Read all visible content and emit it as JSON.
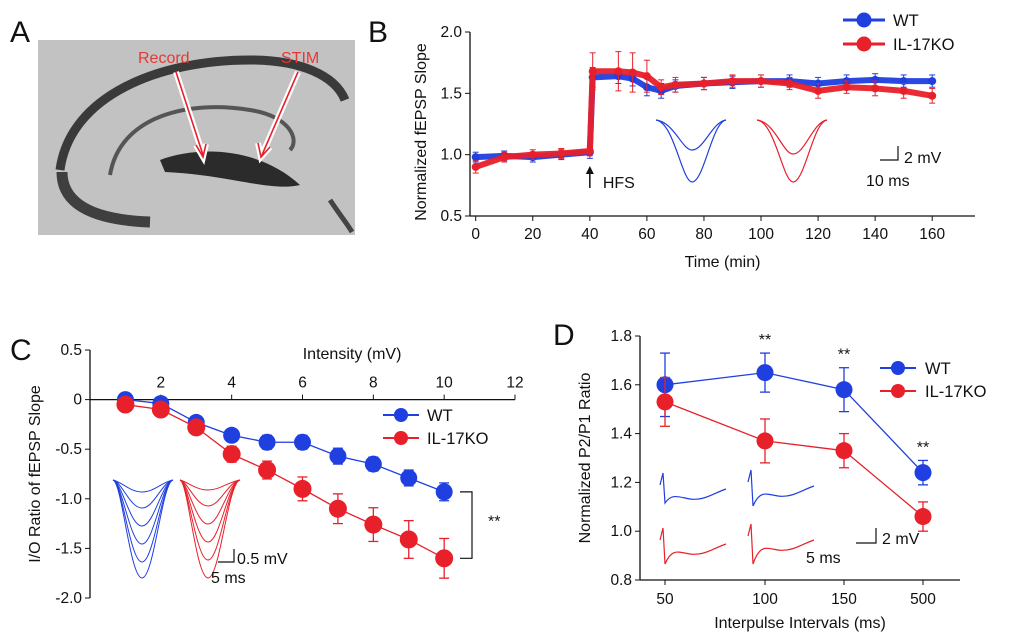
{
  "colors": {
    "wt": "#1f3fe0",
    "ko": "#e8202a",
    "axis": "#111111"
  },
  "panel_a": {
    "letter": "A",
    "label_record": "Record",
    "label_stim": "STIM",
    "image": "hippocampal-slice-micrograph"
  },
  "panel_b": {
    "letter": "B"
  },
  "panel_c": {
    "letter": "C"
  },
  "panel_d": {
    "letter": "D"
  },
  "chart_data": [
    {
      "id": "B",
      "type": "line",
      "xlabel": "Time (min)",
      "ylabel": "Normalized fEPSP Slope",
      "xlim": [
        -2,
        175
      ],
      "ylim": [
        0.5,
        2.0
      ],
      "xticks": [
        "0",
        "20",
        "40",
        "60",
        "80",
        "100",
        "120",
        "140",
        "160"
      ],
      "yticks": [
        "0.5",
        "1.0",
        "1.5",
        "2.0"
      ],
      "legend": [
        "WT",
        "IL-17KO"
      ],
      "legend_position": "top-right",
      "annotations": {
        "hfs": "HFS",
        "scale_v": "2 mV",
        "scale_t": "10 ms"
      },
      "series": [
        {
          "name": "WT",
          "x": [
            0,
            10,
            20,
            30,
            40,
            41,
            50,
            55,
            60,
            65,
            70,
            80,
            90,
            100,
            110,
            120,
            130,
            140,
            150,
            160
          ],
          "values": [
            0.98,
            0.99,
            0.98,
            1.0,
            1.02,
            1.63,
            1.64,
            1.62,
            1.55,
            1.52,
            1.56,
            1.58,
            1.59,
            1.6,
            1.6,
            1.58,
            1.6,
            1.61,
            1.6,
            1.6
          ],
          "error": [
            0.04,
            0.04,
            0.04,
            0.04,
            0.05,
            0.08,
            0.06,
            0.06,
            0.07,
            0.06,
            0.05,
            0.05,
            0.05,
            0.05,
            0.05,
            0.05,
            0.05,
            0.05,
            0.05,
            0.05
          ]
        },
        {
          "name": "IL-17KO",
          "x": [
            0,
            10,
            20,
            30,
            40,
            41,
            50,
            55,
            60,
            65,
            70,
            80,
            90,
            100,
            110,
            120,
            130,
            140,
            150,
            160
          ],
          "values": [
            0.9,
            0.98,
            1.0,
            1.01,
            1.03,
            1.68,
            1.68,
            1.67,
            1.64,
            1.55,
            1.57,
            1.58,
            1.6,
            1.6,
            1.58,
            1.52,
            1.55,
            1.54,
            1.52,
            1.48
          ],
          "error": [
            0.05,
            0.04,
            0.04,
            0.04,
            0.04,
            0.15,
            0.16,
            0.16,
            0.13,
            0.06,
            0.06,
            0.05,
            0.05,
            0.05,
            0.05,
            0.06,
            0.05,
            0.06,
            0.06,
            0.06
          ]
        }
      ]
    },
    {
      "id": "C",
      "type": "line",
      "xlabel": "Intensity  (mV)",
      "ylabel": "I/O Ratio of fEPSP Slope",
      "xlim": [
        0,
        12
      ],
      "ylim": [
        -2.0,
        0.5
      ],
      "xticks": [
        "2",
        "4",
        "6",
        "8",
        "10",
        "12"
      ],
      "yticks": [
        "0.5",
        "0",
        "-0.5",
        "-1.0",
        "-1.5",
        "-2.0"
      ],
      "legend": [
        "WT",
        "IL-17KO"
      ],
      "legend_position": "center-right",
      "annotations": {
        "significance": "**",
        "scale_v": "0.5 mV",
        "scale_t": "5 ms"
      },
      "series": [
        {
          "name": "WT",
          "x": [
            1,
            2,
            3,
            4,
            5,
            6,
            7,
            8,
            9,
            10
          ],
          "values": [
            0.0,
            -0.04,
            -0.23,
            -0.36,
            -0.43,
            -0.43,
            -0.57,
            -0.65,
            -0.79,
            -0.93
          ],
          "error": [
            0.03,
            0.03,
            0.04,
            0.06,
            0.07,
            0.07,
            0.08,
            0.07,
            0.08,
            0.09
          ]
        },
        {
          "name": "IL-17KO",
          "x": [
            1,
            2,
            3,
            4,
            5,
            6,
            7,
            8,
            9,
            10
          ],
          "values": [
            -0.05,
            -0.1,
            -0.28,
            -0.55,
            -0.71,
            -0.9,
            -1.1,
            -1.26,
            -1.41,
            -1.6
          ],
          "error": [
            0.04,
            0.05,
            0.06,
            0.08,
            0.09,
            0.12,
            0.15,
            0.17,
            0.19,
            0.2
          ]
        }
      ]
    },
    {
      "id": "D",
      "type": "line",
      "xlabel": "Interpulse Intervals  (ms)",
      "ylabel": "Normalized P2/P1 Ratio",
      "categories": [
        "50",
        "100",
        "150",
        "500"
      ],
      "ylim": [
        0.8,
        1.8
      ],
      "yticks": [
        "0.8",
        "1.0",
        "1.2",
        "1.4",
        "1.6",
        "1.8"
      ],
      "legend": [
        "WT",
        "IL-17KO"
      ],
      "legend_position": "top-right",
      "significance": [
        "",
        "**",
        "**",
        "**"
      ],
      "annotations": {
        "scale_v": "2 mV",
        "scale_t": "5 ms"
      },
      "series": [
        {
          "name": "WT",
          "values": [
            1.6,
            1.65,
            1.58,
            1.24
          ],
          "error": [
            0.13,
            0.08,
            0.09,
            0.05
          ]
        },
        {
          "name": "IL-17KO",
          "values": [
            1.53,
            1.37,
            1.33,
            1.06
          ],
          "error": [
            0.1,
            0.09,
            0.07,
            0.06
          ]
        }
      ]
    }
  ]
}
